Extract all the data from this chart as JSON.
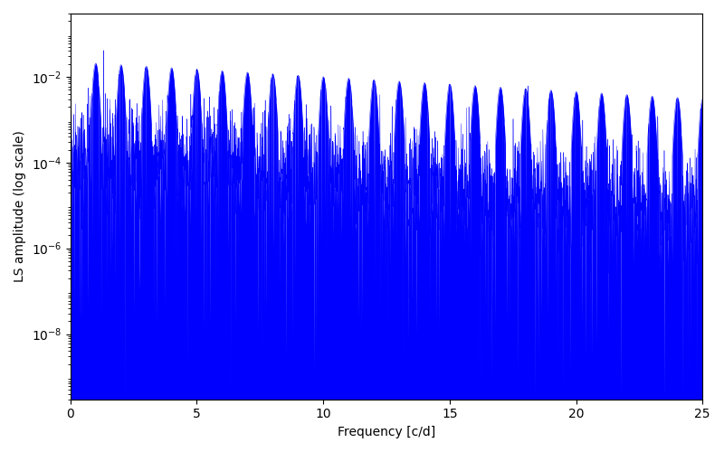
{
  "title": "",
  "xlabel": "Frequency [c/d]",
  "ylabel": "LS amplitude (log scale)",
  "xlim": [
    0,
    25
  ],
  "ylim": [
    3e-10,
    0.3
  ],
  "line_color": "#0000FF",
  "background_color": "#ffffff",
  "figsize": [
    8.0,
    5.0
  ],
  "dpi": 100,
  "seed": 42,
  "n_points": 4000,
  "freq_max": 25.0,
  "yticks": [
    1e-08,
    1e-06,
    0.0001,
    0.01
  ],
  "xticks": [
    0,
    5,
    10,
    15,
    20,
    25
  ]
}
